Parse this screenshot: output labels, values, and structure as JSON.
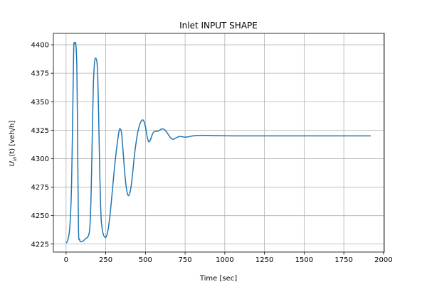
{
  "chart_data": {
    "type": "line",
    "title": "Inlet INPUT SHAPE",
    "xlabel": "Time [sec]",
    "ylabel_main": "U",
    "ylabel_sub": "in",
    "ylabel_rest": "(t) [veh/h]",
    "xlim": [
      -80,
      2005
    ],
    "ylim": [
      4218,
      4410
    ],
    "xticks": [
      0,
      250,
      500,
      750,
      1000,
      1250,
      1500,
      1750,
      2000
    ],
    "yticks": [
      4225,
      4250,
      4275,
      4300,
      4325,
      4350,
      4375,
      4400
    ],
    "grid": true,
    "line_color": "#1f77b4",
    "series": [
      {
        "x": [
          0,
          10,
          20,
          28,
          35,
          42,
          48,
          55,
          62,
          68,
          72,
          78,
          85,
          95,
          110,
          125,
          140,
          150,
          158,
          165,
          172,
          180,
          188,
          195,
          200,
          205,
          212,
          220,
          228,
          236,
          245,
          255,
          265,
          275,
          285,
          295,
          305,
          315,
          325,
          335,
          342,
          350,
          360,
          370,
          380,
          390,
          400,
          410,
          420,
          430,
          440,
          450,
          460,
          470,
          480,
          490,
          500,
          510,
          520,
          530,
          540,
          550,
          560,
          575,
          590,
          600,
          615,
          630,
          645,
          660,
          675,
          690,
          705,
          720,
          740,
          760,
          780,
          800,
          830,
          860,
          900,
          950,
          1000,
          1050,
          1100,
          1200,
          1300,
          1400,
          1500,
          1600,
          1700,
          1800,
          1900,
          1920
        ],
        "y": [
          4226,
          4228,
          4235,
          4250,
          4280,
          4340,
          4396,
          4401,
          4400,
          4380,
          4330,
          4240,
          4229,
          4227,
          4228,
          4230,
          4232,
          4240,
          4270,
          4320,
          4365,
          4385,
          4388,
          4384,
          4370,
          4340,
          4290,
          4250,
          4238,
          4233,
          4231,
          4232,
          4238,
          4248,
          4262,
          4277,
          4292,
          4305,
          4316,
          4325,
          4326,
          4322,
          4305,
          4287,
          4274,
          4268,
          4269,
          4276,
          4288,
          4302,
          4313,
          4322,
          4328,
          4332,
          4334,
          4333,
          4328,
          4320,
          4315,
          4316,
          4320,
          4323,
          4324,
          4324,
          4325,
          4326,
          4326,
          4324,
          4321,
          4318,
          4317,
          4318,
          4319,
          4319.5,
          4319,
          4319,
          4319.5,
          4320,
          4320.4,
          4320.5,
          4320.4,
          4320.2,
          4320.1,
          4320,
          4320,
          4320,
          4320,
          4320,
          4320,
          4320,
          4320,
          4320,
          4320,
          4320
        ]
      }
    ]
  }
}
